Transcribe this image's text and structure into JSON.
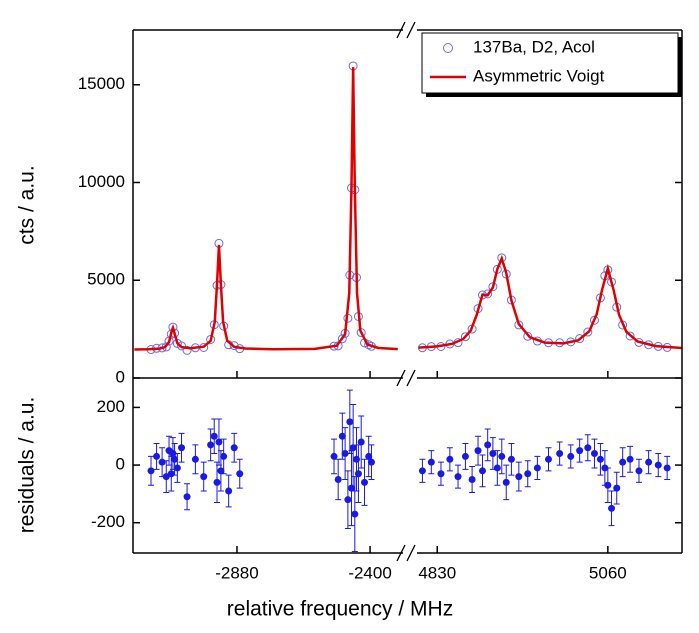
{
  "chart_data": [
    {
      "type": "scatter",
      "ylabel": "cts / a.u.",
      "ylim": [
        0,
        17800
      ],
      "yticks": [
        0,
        5000,
        10000,
        15000
      ],
      "legend": "upper right",
      "series": [
        {
          "name": "137Ba, D2, Acol",
          "color": "#6a6ae6",
          "marker": "open-circle",
          "x": [
            -3190,
            -3170,
            -3150,
            -3135,
            -3125,
            -3117,
            -3111,
            -3105,
            -3095,
            -3080,
            -3060,
            -3030,
            -3000,
            -2975,
            -2962,
            -2952,
            -2945,
            -2938,
            -2928,
            -2910,
            -2890,
            -2870,
            -2530,
            -2515,
            -2500,
            -2490,
            -2480,
            -2473,
            -2467,
            -2461,
            -2455,
            -2449,
            -2442,
            -2432,
            -2420,
            -2405,
            -2395,
            4810,
            4822,
            4835,
            4847,
            4858,
            4868,
            4877,
            4885,
            4891,
            4898,
            4905,
            4911,
            4917,
            4923,
            4930,
            4940,
            4952,
            4965,
            4980,
            4995,
            5010,
            5022,
            5033,
            5042,
            5050,
            5056,
            5060,
            5065,
            5072,
            5080,
            5090,
            5102,
            5115,
            5128,
            5140
          ],
          "values": [
            1458,
            1520,
            1540,
            1590,
            1887,
            2243,
            2605,
            2296,
            1770,
            1640,
            1414,
            1546,
            1560,
            1970,
            2725,
            4735,
            6885,
            4780,
            2655,
            1700,
            1655,
            1500,
            1630,
            1640,
            2005,
            2284,
            3056,
            5268,
            9720,
            15960,
            9630,
            5138,
            3146,
            2324,
            1799,
            1702,
            1621,
            1545,
            1605,
            1611,
            1739,
            1808,
            2113,
            2505,
            3550,
            4243,
            4303,
            4669,
            5559,
            6146,
            5317,
            3987,
            2716,
            2133,
            1892,
            1804,
            1802,
            1848,
            2013,
            2351,
            2954,
            4097,
            5229,
            5533,
            4911,
            3623,
            2711,
            2149,
            1818,
            1702,
            1616,
            1565
          ]
        },
        {
          "name": "Asymmetric Voigt",
          "color": "#e00000",
          "marker": "line",
          "x": [
            -3250,
            -3200,
            -3160,
            -3140,
            -3125,
            -3115,
            -3111,
            -3105,
            -3095,
            -3080,
            -3050,
            -3000,
            -2975,
            -2960,
            -2952,
            -2945,
            -2938,
            -2930,
            -2915,
            -2890,
            -2850,
            -2750,
            -2600,
            -2520,
            -2490,
            -2475,
            -2467,
            -2461,
            -2455,
            -2447,
            -2435,
            -2410,
            -2370,
            -2300,
            null,
            4805,
            4830,
            4850,
            4865,
            4875,
            4883,
            4891,
            4898,
            4905,
            4911,
            4917,
            4923,
            4930,
            4940,
            4955,
            4975,
            5000,
            5020,
            5035,
            5045,
            5052,
            5060,
            5068,
            5075,
            5085,
            5100,
            5125,
            5160
          ],
          "values": [
            1460,
            1471,
            1503,
            1580,
            1837,
            2414,
            2565,
            2276,
            1780,
            1580,
            1520,
            1600,
            1900,
            2870,
            4795,
            6805,
            4800,
            2875,
            1900,
            1595,
            1508,
            1470,
            1490,
            1651,
            2244,
            4340,
            9800,
            15900,
            9800,
            4340,
            2426,
            1718,
            1536,
            1478,
            null,
            1552,
            1618,
            1747,
            1994,
            2413,
            3205,
            4263,
            4233,
            4629,
            5569,
            6116,
            5377,
            3967,
            2756,
            2081,
            1811,
            1771,
            1929,
            2390,
            3268,
            4476,
            5603,
            4464,
            3250,
            2360,
            1870,
            1630,
            1535
          ]
        }
      ]
    },
    {
      "type": "errorbar",
      "ylabel": "residuals / a.u.",
      "xlabel": "relative frequency / MHz",
      "ylim": [
        -305,
        302
      ],
      "yticks": [
        -200,
        0,
        200
      ],
      "xsegments": [
        {
          "xlim": [
            -3255,
            -2274
          ],
          "xticks": [
            -2880,
            -2400
          ]
        },
        {
          "xlim": [
            4800,
            5160
          ],
          "xticks": [
            4830,
            5060
          ]
        }
      ],
      "series": [
        {
          "color": "#1a1ae6",
          "x": [
            -3190,
            -3170,
            -3150,
            -3135,
            -3125,
            -3117,
            -3111,
            -3105,
            -3095,
            -3080,
            -3060,
            -3030,
            -3000,
            -2975,
            -2962,
            -2952,
            -2945,
            -2938,
            -2928,
            -2910,
            -2890,
            -2870,
            -2530,
            -2515,
            -2500,
            -2490,
            -2480,
            -2473,
            -2467,
            -2461,
            -2455,
            -2449,
            -2442,
            -2432,
            -2420,
            -2405,
            -2395,
            4810,
            4822,
            4835,
            4847,
            4858,
            4868,
            4877,
            4885,
            4891,
            4898,
            4905,
            4911,
            4917,
            4923,
            4930,
            4940,
            4952,
            4965,
            4980,
            4995,
            5010,
            5022,
            5033,
            5042,
            5050,
            5056,
            5060,
            5065,
            5072,
            5080,
            5090,
            5102,
            5115,
            5128,
            5140
          ],
          "values": [
            -20,
            30,
            10,
            -40,
            50,
            -30,
            40,
            20,
            -10,
            60,
            -110,
            20,
            -40,
            70,
            100,
            -60,
            80,
            -20,
            30,
            -90,
            60,
            -30,
            30,
            -50,
            100,
            40,
            -120,
            150,
            -80,
            60,
            -170,
            20,
            -30,
            80,
            -60,
            30,
            10,
            -20,
            10,
            -30,
            20,
            -40,
            30,
            -50,
            50,
            -20,
            70,
            40,
            -10,
            30,
            -60,
            20,
            -40,
            -30,
            -10,
            20,
            40,
            30,
            50,
            60,
            40,
            20,
            -10,
            -70,
            -150,
            -80,
            10,
            20,
            -20,
            10,
            0,
            -10
          ],
          "errors": [
            50,
            45,
            50,
            55,
            50,
            60,
            55,
            55,
            50,
            50,
            45,
            50,
            50,
            55,
            60,
            70,
            80,
            70,
            60,
            55,
            50,
            50,
            60,
            70,
            80,
            90,
            100,
            110,
            130,
            150,
            130,
            110,
            100,
            90,
            80,
            70,
            60,
            40,
            40,
            40,
            40,
            40,
            45,
            45,
            50,
            55,
            55,
            55,
            60,
            60,
            60,
            55,
            50,
            45,
            40,
            40,
            40,
            40,
            40,
            45,
            50,
            55,
            60,
            60,
            60,
            55,
            50,
            45,
            40,
            40,
            40,
            40
          ]
        }
      ]
    }
  ]
}
